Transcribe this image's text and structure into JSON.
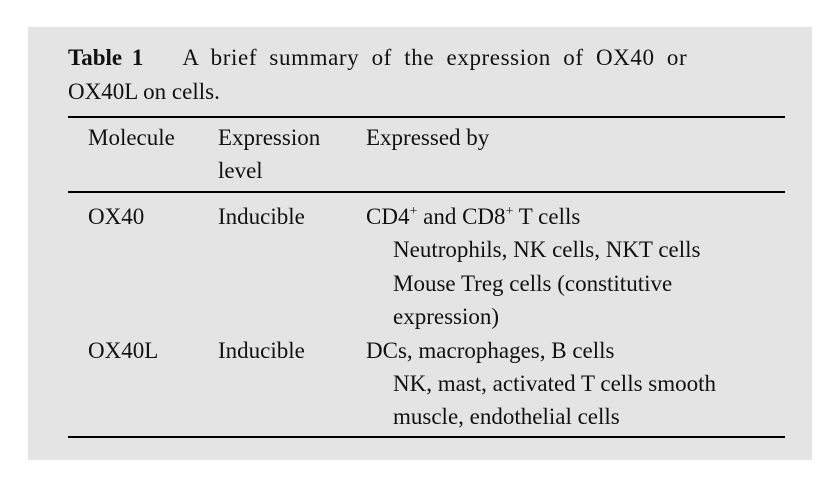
{
  "caption": {
    "label": "Table 1",
    "text_line1": "A brief summary of the expression of OX40 or",
    "text_line2": "OX40L on cells."
  },
  "headers": {
    "molecule": "Molecule",
    "expression_1": "Expression",
    "expression_2": "level",
    "expressed_by": "Expressed by"
  },
  "rows": [
    {
      "molecule": "OX40",
      "level": "Inducible",
      "lines": [
        "CD4",
        "+",
        " and CD8",
        "+",
        " T cells",
        "Neutrophils, NK cells, NKT cells",
        "Mouse Treg cells (constitutive",
        "expression)"
      ]
    },
    {
      "molecule": "OX40L",
      "level": "Inducible",
      "lines": [
        "DCs, macrophages, B cells",
        "NK, mast, activated T cells smooth",
        "muscle, endothelial cells"
      ]
    }
  ]
}
